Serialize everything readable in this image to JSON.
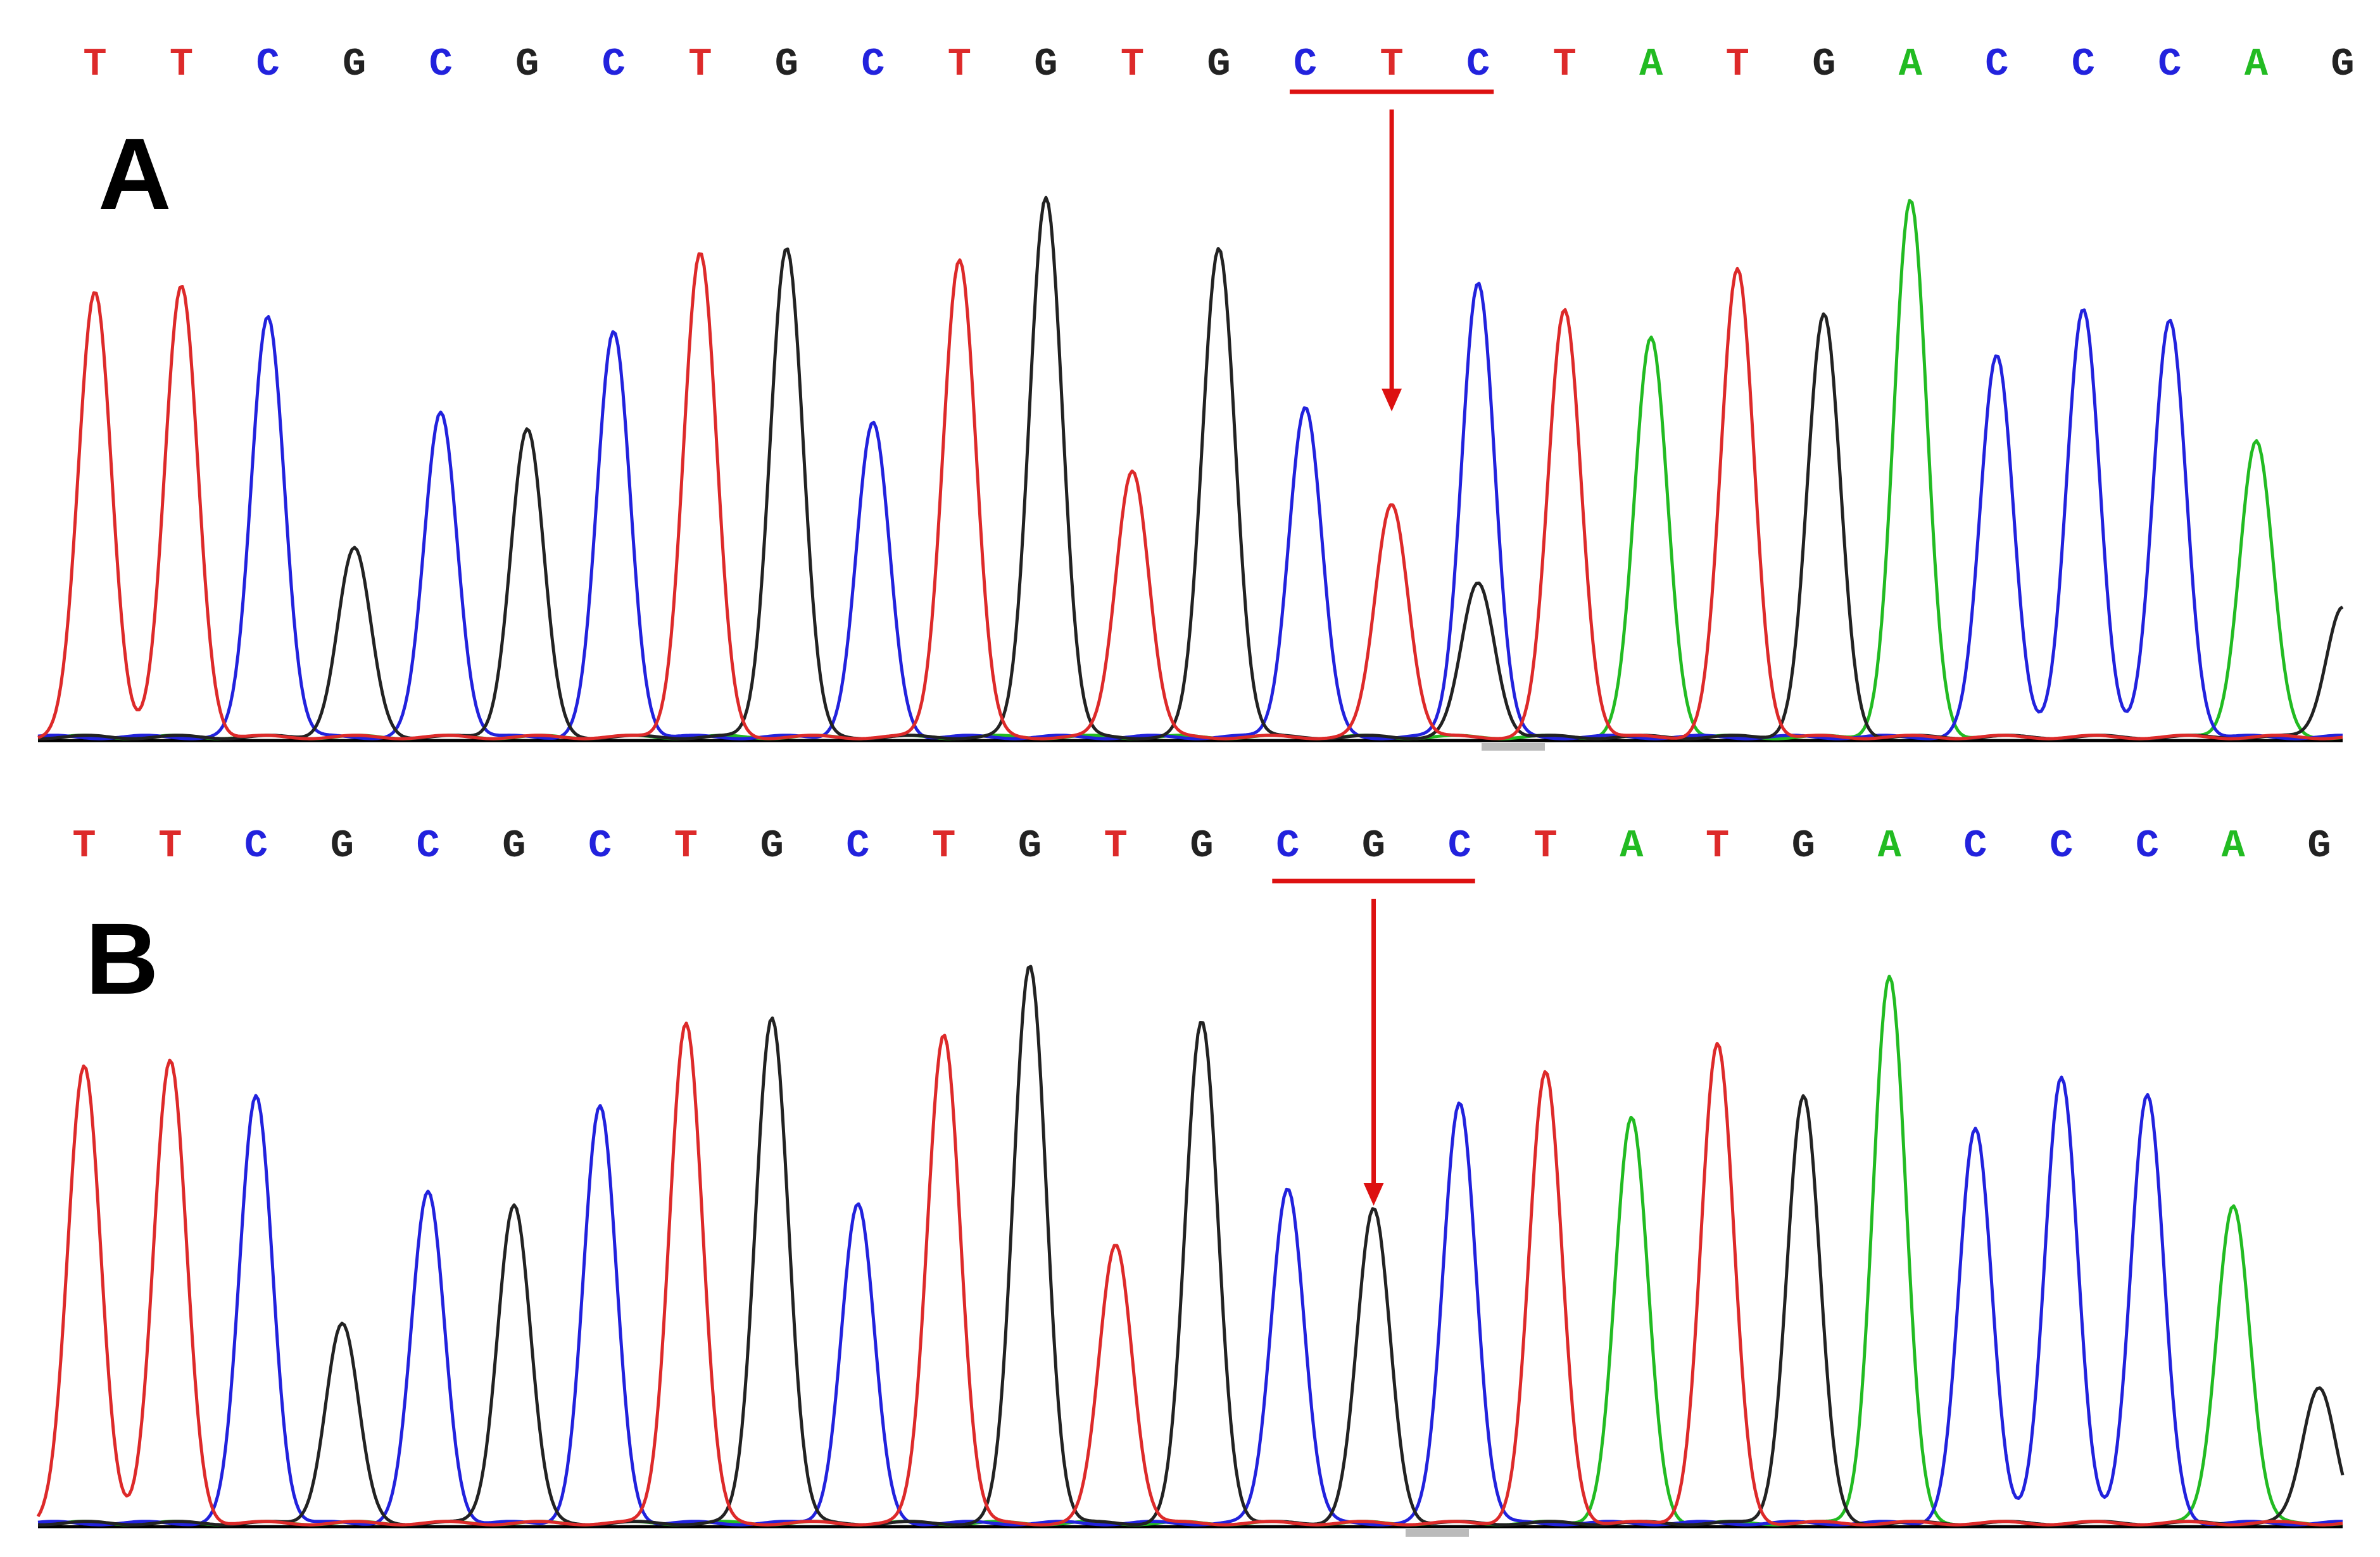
{
  "colors": {
    "A": "#22bb22",
    "C": "#2222dd",
    "G": "#222222",
    "T": "#dd2a2a",
    "marker": "#dd1111",
    "baseline": "#000000",
    "scroll_tab": "#bbbbbb"
  },
  "chart_data": [
    {
      "type": "line",
      "panel_label": "A",
      "sequence": [
        "T",
        "T",
        "C",
        "G",
        "C",
        "G",
        "C",
        "T",
        "G",
        "C",
        "T",
        "G",
        "T",
        "G",
        "C",
        "T",
        "C",
        "T",
        "A",
        "T",
        "G",
        "A",
        "C",
        "C",
        "C",
        "A",
        "G"
      ],
      "peak_heights": [
        0.78,
        0.79,
        0.74,
        0.33,
        0.57,
        0.54,
        0.71,
        0.85,
        0.86,
        0.55,
        0.84,
        0.95,
        0.47,
        0.86,
        0.58,
        0.41,
        0.8,
        0.75,
        0.7,
        0.82,
        0.74,
        0.94,
        0.67,
        0.75,
        0.73,
        0.52,
        0.23
      ],
      "secondary_peaks": [
        {
          "position": 16,
          "base": "G",
          "height": 0.27
        }
      ],
      "marked_region": {
        "start": 15,
        "end": 17,
        "arrow_at": 16
      }
    },
    {
      "type": "line",
      "panel_label": "B",
      "sequence": [
        "T",
        "T",
        "C",
        "G",
        "C",
        "G",
        "C",
        "T",
        "G",
        "C",
        "T",
        "G",
        "T",
        "G",
        "C",
        "G",
        "C",
        "T",
        "A",
        "T",
        "G",
        "A",
        "C",
        "C",
        "C",
        "A",
        "G"
      ],
      "peak_heights": [
        0.8,
        0.81,
        0.75,
        0.35,
        0.58,
        0.56,
        0.73,
        0.88,
        0.89,
        0.56,
        0.86,
        0.98,
        0.49,
        0.88,
        0.59,
        0.55,
        0.74,
        0.79,
        0.71,
        0.84,
        0.75,
        0.96,
        0.69,
        0.78,
        0.75,
        0.56,
        0.24
      ],
      "secondary_peaks": [],
      "marked_region": {
        "start": 15,
        "end": 17,
        "arrow_at": 16
      }
    }
  ]
}
